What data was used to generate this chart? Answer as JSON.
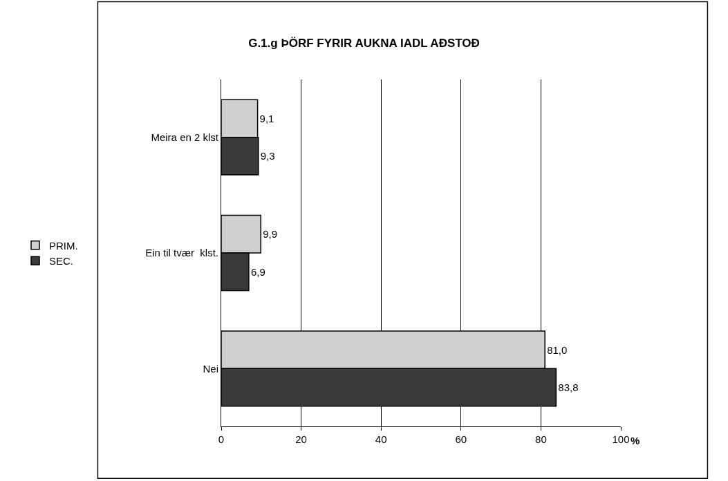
{
  "chart_data": {
    "type": "bar",
    "orientation": "horizontal",
    "title": "G.1.g ÞÖRF FYRIR AUKNA IADL AÐSTOÐ",
    "xlabel": "%",
    "categories": [
      "Meira en 2 klst",
      "Ein til tvær  klst.",
      "Nei"
    ],
    "series": [
      {
        "name": "PRIM.",
        "color": "#d0d0d0",
        "values": [
          9.1,
          9.9,
          81.0
        ],
        "value_labels": [
          "9,1",
          "9,9",
          "81,0"
        ]
      },
      {
        "name": "SEC.",
        "color": "#3a3a3a",
        "values": [
          9.3,
          6.9,
          83.8
        ],
        "value_labels": [
          "9,3",
          "6,9",
          "83,8"
        ]
      }
    ],
    "xlim": [
      0,
      100
    ],
    "xticks": [
      0,
      20,
      40,
      60,
      80,
      100
    ],
    "grid": "x",
    "legend": "left"
  }
}
